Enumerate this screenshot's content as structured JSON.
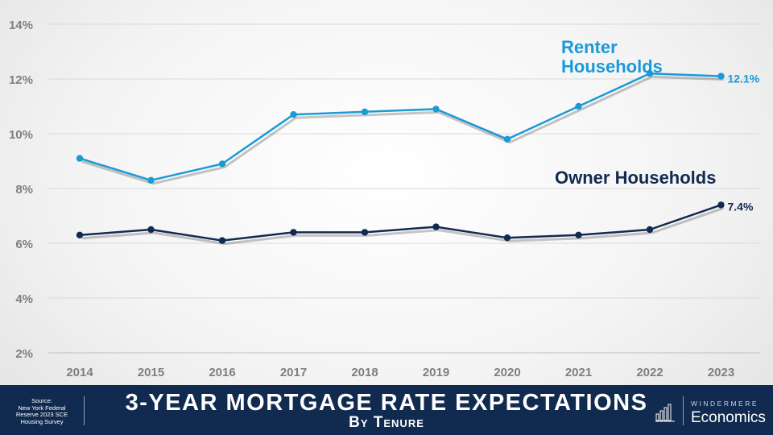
{
  "chart_data": {
    "type": "line",
    "x": [
      "2014",
      "2015",
      "2016",
      "2017",
      "2018",
      "2019",
      "2020",
      "2021",
      "2022",
      "2023"
    ],
    "ylim": [
      2,
      14
    ],
    "yticks": [
      "2%",
      "4%",
      "6%",
      "8%",
      "10%",
      "12%",
      "14%"
    ],
    "grid": true,
    "series": [
      {
        "name": "Renter Households",
        "name_lines": [
          "Renter",
          "Households"
        ],
        "color": "#1b9ad6",
        "values": [
          9.1,
          8.3,
          8.9,
          10.7,
          10.8,
          10.9,
          9.8,
          11.0,
          12.2,
          12.1
        ],
        "end_label": "12.1%"
      },
      {
        "name": "Owner Households",
        "name_lines": [
          "Owner Households"
        ],
        "color": "#112a4f",
        "values": [
          6.3,
          6.5,
          6.1,
          6.4,
          6.4,
          6.6,
          6.2,
          6.3,
          6.5,
          7.4
        ],
        "end_label": "7.4%"
      }
    ]
  },
  "footer": {
    "source": "Source:\nNew York Federal\nReserve 2023 SCE\nHousing Survey",
    "title": "3-YEAR MORTGAGE RATE EXPECTATIONS",
    "subtitle": "By Tenure",
    "logo_top": "WINDERMERE",
    "logo_bottom": "Economics"
  },
  "colors": {
    "footer_bg": "#112a4f",
    "renter": "#1b9ad6",
    "owner": "#112a4f",
    "axis_text": "#7f7f7f"
  }
}
